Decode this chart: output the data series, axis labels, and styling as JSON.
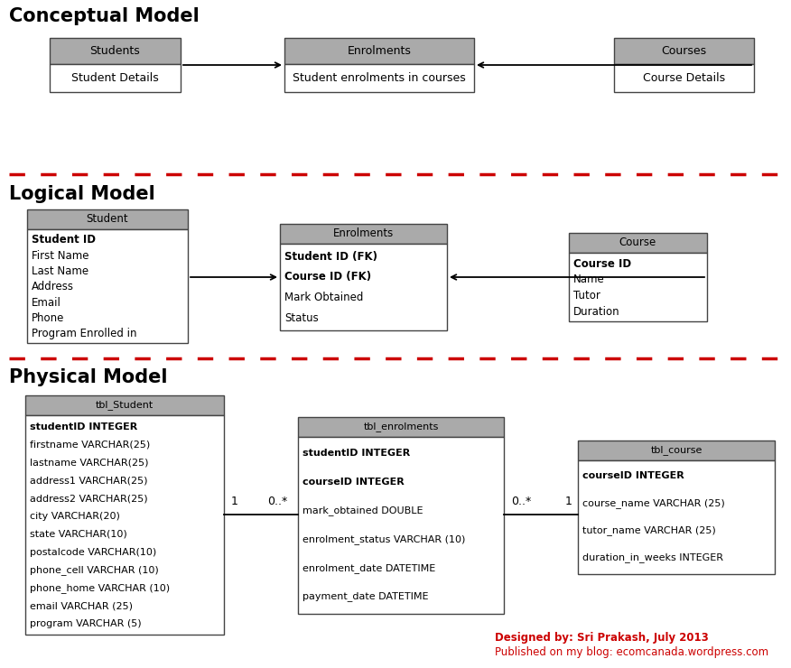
{
  "bg_color": "#ffffff",
  "header_color": "#aaaaaa",
  "box_edge_color": "#444444",
  "dashed_line_color": "#cc0000",
  "title_color": "#000000",
  "section_titles": [
    "Conceptual Model",
    "Logical Model",
    "Physical Model"
  ],
  "section_title_fontsize": 15,
  "footer_text1": "Designed by: Sri Prakash, July 2013",
  "footer_text2": "Published on my blog: ecomcanada.wordpress.com",
  "footer_color": "#cc0000"
}
